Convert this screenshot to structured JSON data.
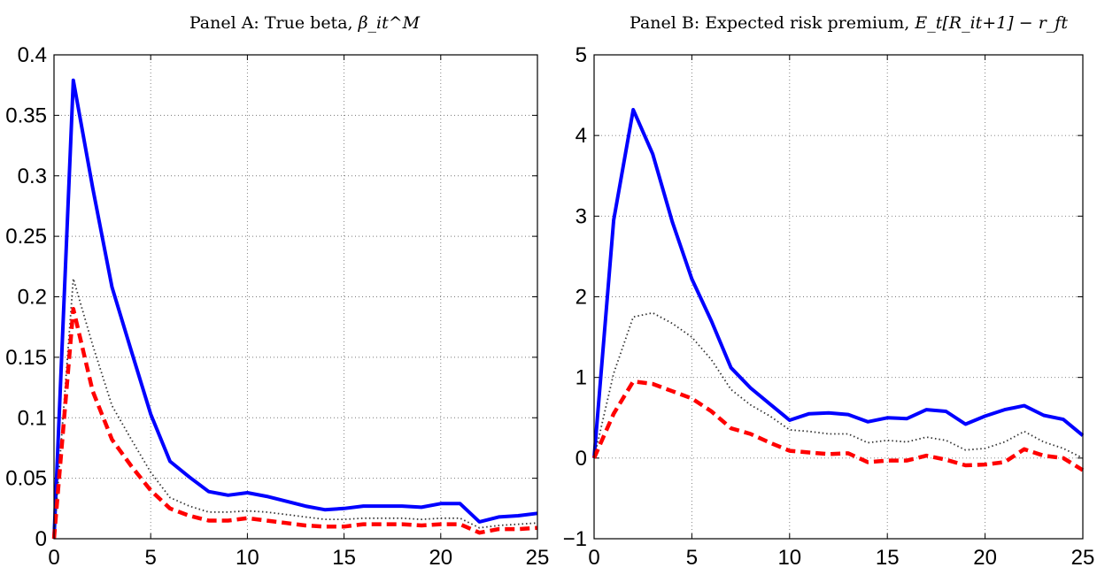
{
  "chart_data": [
    {
      "type": "line",
      "title": "Panel A: True beta,",
      "title_math": "β_it^M",
      "xlim": [
        0,
        25
      ],
      "ylim": [
        0,
        0.4
      ],
      "xticks": [
        "0",
        "5",
        "10",
        "15",
        "20",
        "25"
      ],
      "yticks": [
        "0",
        "0.05",
        "0.1",
        "0.15",
        "0.2",
        "0.25",
        "0.3",
        "0.35",
        "0.4"
      ],
      "grid": true,
      "x": [
        0,
        1,
        2,
        3,
        4,
        5,
        6,
        7,
        8,
        9,
        10,
        11,
        12,
        13,
        14,
        15,
        16,
        17,
        18,
        19,
        20,
        21,
        22,
        23,
        24,
        25
      ],
      "series": [
        {
          "style": "solid",
          "color": "#0000ff",
          "values": [
            0,
            0.379,
            0.29,
            0.208,
            0.155,
            0.103,
            0.064,
            0.051,
            0.039,
            0.036,
            0.038,
            0.035,
            0.031,
            0.027,
            0.024,
            0.025,
            0.027,
            0.027,
            0.027,
            0.026,
            0.029,
            0.029,
            0.014,
            0.018,
            0.019,
            0.021
          ]
        },
        {
          "style": "dotted",
          "color": "#333333",
          "values": [
            0,
            0.215,
            0.16,
            0.11,
            0.082,
            0.055,
            0.034,
            0.027,
            0.022,
            0.022,
            0.023,
            0.022,
            0.02,
            0.018,
            0.016,
            0.016,
            0.017,
            0.017,
            0.017,
            0.016,
            0.017,
            0.017,
            0.009,
            0.011,
            0.012,
            0.013
          ]
        },
        {
          "style": "dashed",
          "color": "#ff0000",
          "values": [
            0,
            0.19,
            0.122,
            0.082,
            0.06,
            0.04,
            0.025,
            0.019,
            0.015,
            0.015,
            0.017,
            0.015,
            0.013,
            0.011,
            0.01,
            0.01,
            0.012,
            0.012,
            0.012,
            0.011,
            0.012,
            0.012,
            0.005,
            0.008,
            0.008,
            0.009
          ]
        }
      ]
    },
    {
      "type": "line",
      "title": "Panel B: Expected risk premium,",
      "title_math": "E_t[R_it+1] − r_ft",
      "xlim": [
        0,
        25
      ],
      "ylim": [
        -1,
        5
      ],
      "xticks": [
        "0",
        "5",
        "10",
        "15",
        "20",
        "25"
      ],
      "yticks": [
        "−1",
        "0",
        "1",
        "2",
        "3",
        "4",
        "5"
      ],
      "grid": true,
      "x": [
        0,
        1,
        2,
        3,
        4,
        5,
        6,
        7,
        8,
        9,
        10,
        11,
        12,
        13,
        14,
        15,
        16,
        17,
        18,
        19,
        20,
        21,
        22,
        23,
        24,
        25
      ],
      "series": [
        {
          "style": "solid",
          "color": "#0000ff",
          "values": [
            0,
            2.95,
            4.32,
            3.77,
            2.93,
            2.22,
            1.7,
            1.12,
            0.87,
            0.67,
            0.47,
            0.55,
            0.56,
            0.54,
            0.45,
            0.5,
            0.49,
            0.6,
            0.58,
            0.42,
            0.52,
            0.6,
            0.65,
            0.53,
            0.48,
            0.28
          ]
        },
        {
          "style": "dotted",
          "color": "#333333",
          "values": [
            0,
            1.05,
            1.75,
            1.8,
            1.67,
            1.5,
            1.22,
            0.85,
            0.66,
            0.52,
            0.35,
            0.33,
            0.3,
            0.3,
            0.19,
            0.22,
            0.2,
            0.26,
            0.22,
            0.1,
            0.12,
            0.2,
            0.33,
            0.2,
            0.12,
            0.0
          ]
        },
        {
          "style": "dashed",
          "color": "#ff0000",
          "values": [
            0,
            0.55,
            0.95,
            0.92,
            0.83,
            0.74,
            0.58,
            0.37,
            0.3,
            0.19,
            0.09,
            0.07,
            0.05,
            0.06,
            -0.05,
            -0.03,
            -0.03,
            0.03,
            -0.02,
            -0.09,
            -0.08,
            -0.05,
            0.11,
            0.03,
            0.0,
            -0.15
          ]
        }
      ]
    }
  ]
}
